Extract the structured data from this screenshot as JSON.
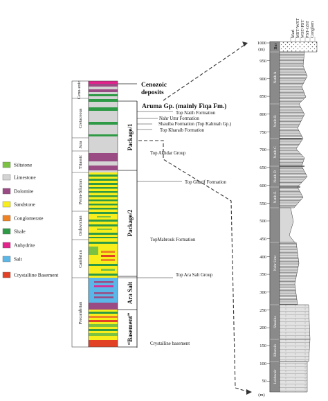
{
  "legend": [
    {
      "label": "Siltstone",
      "color": "#7cc242"
    },
    {
      "label": "Limestone",
      "color": "#d4d4d4"
    },
    {
      "label": "Dolomite",
      "color": "#9b4b83"
    },
    {
      "label": "Sandstone",
      "color": "#f7ee1c"
    },
    {
      "label": "Conglomerate",
      "color": "#ef8223"
    },
    {
      "label": "Shale",
      "color": "#2f9a46"
    },
    {
      "label": "Anhydrite",
      "color": "#e2238c"
    },
    {
      "label": "Salt",
      "color": "#5ab7e8"
    },
    {
      "label": "Crystalline Basement",
      "color": "#e34126"
    }
  ],
  "eras": [
    "Ceno-zoic",
    "Cretaceous",
    "Jura",
    "Triassic",
    "Perm-Silurian",
    "Ordovician",
    "Cambrian",
    "Precambrian"
  ],
  "packages": [
    "Package/1",
    "Package/2",
    "Ara Salt",
    "“Basement”"
  ],
  "units": {
    "cenozoic": "Cenozoic deposits",
    "aruma": "Aruma Gp. (mainly Fiqa Fm.)"
  },
  "formation_tops": [
    "Top Natih Formation",
    "Nahr Umr Formation",
    "Shauiba Formation (Top Kahmah Gp.)",
    "Top Kharaib Formation",
    "Top Akhdar Group",
    "Top Gharif Formation",
    "TopMabrouk Formation",
    "Top Ara Salt Group",
    "Crystalline basement"
  ],
  "log": {
    "column_headers": [
      "Marl",
      "MST-WST",
      "WST-PST",
      "PST-GST",
      "Conglom"
    ],
    "bar_label": "Bar",
    "depth_unit": "(m)",
    "depth_ticks": [
      "1000",
      "950",
      "900",
      "850",
      "800",
      "750",
      "700",
      "650",
      "600",
      "550",
      "500",
      "450",
      "400",
      "350",
      "300",
      "250",
      "200",
      "150",
      "100",
      "50"
    ],
    "unit_labels": [
      "Natih A",
      "Natih B",
      "Natih C",
      "Natih D",
      "Natih E",
      "Nahr Umr",
      "Shuaiba",
      "Kharaib",
      "Lekhwair"
    ]
  }
}
